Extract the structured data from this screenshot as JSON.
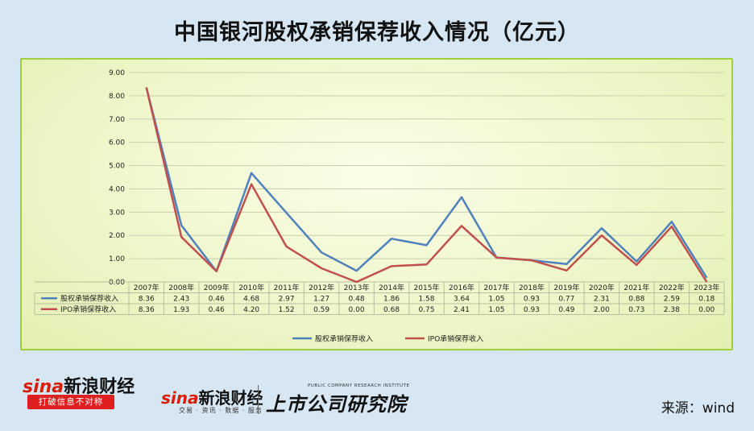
{
  "title": "中国银河股权承销保荐收入情况（亿元）",
  "source": "来源：wind",
  "logos": {
    "left_brand": "新浪财经",
    "left_slogan": "打破信息不对称",
    "mid_brand": "新浪财经",
    "mid_sub": "交易 · 资讯 · 数据 · 服务",
    "research_en": "PUBLIC COMPANY RESEARCH INSTITUTE",
    "research": "上市公司研究院"
  },
  "colors": {
    "series1": "#4f81bd",
    "series2": "#c0504d",
    "border": "#9fcf3c"
  },
  "chart_data": {
    "type": "line",
    "title": "中国银河股权承销保荐收入情况（亿元）",
    "categories": [
      "2007年",
      "2008年",
      "2009年",
      "2010年",
      "2011年",
      "2012年",
      "2013年",
      "2014年",
      "2015年",
      "2016年",
      "2017年",
      "2018年",
      "2019年",
      "2020年",
      "2021年",
      "2022年",
      "2023年"
    ],
    "series": [
      {
        "name": "股权承销保荐收入",
        "values": [
          8.36,
          2.43,
          0.46,
          4.68,
          2.97,
          1.27,
          0.48,
          1.86,
          1.58,
          3.64,
          1.05,
          0.93,
          0.77,
          2.31,
          0.88,
          2.59,
          0.18
        ]
      },
      {
        "name": "IPO承销保荐收入",
        "values": [
          8.36,
          1.93,
          0.46,
          4.2,
          1.52,
          0.59,
          0.0,
          0.68,
          0.75,
          2.41,
          1.05,
          0.93,
          0.49,
          2.0,
          0.73,
          2.38,
          0.0
        ]
      }
    ],
    "yticks": [
      "0.00",
      "1.00",
      "2.00",
      "3.00",
      "4.00",
      "5.00",
      "6.00",
      "7.00",
      "8.00",
      "9.00"
    ],
    "ylim": [
      0,
      9
    ],
    "grid": true,
    "legend_position": "bottom",
    "data_table": true
  }
}
